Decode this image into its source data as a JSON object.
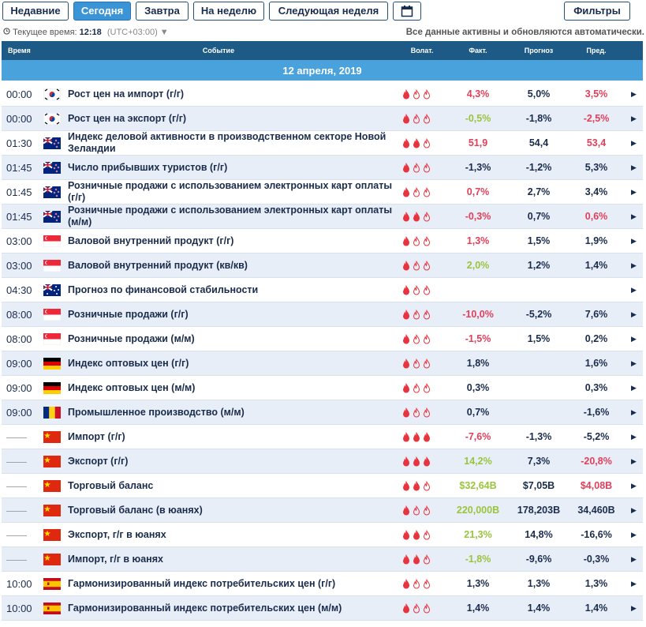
{
  "tabs": [
    "Недавние",
    "Сегодня",
    "Завтра",
    "На неделю",
    "Следующая неделя"
  ],
  "filters": "Фильтры",
  "status": {
    "label": "Текущее время:",
    "time": "12:18",
    "zone": "(UTC+03:00)",
    "note": "Все данные активны и обновляются автоматически."
  },
  "table": {
    "headers": [
      "Время",
      "Событие",
      "Волат.",
      "Факт.",
      "Прогноз",
      "Пред."
    ],
    "date": "12 апреля, 2019",
    "rows": [
      {
        "time": "00:00",
        "flag": "KR",
        "event": "Рост цен на импорт (г/г)",
        "volatility": 1,
        "actual": "4,3%",
        "actual_tone": "red",
        "forecast": "5,0%",
        "previous": "3,5%",
        "previous_tone": "red"
      },
      {
        "time": "00:00",
        "flag": "KR",
        "event": "Рост цен на экспорт (г/г)",
        "volatility": 1,
        "actual": "-0,5%",
        "actual_tone": "green",
        "forecast": "-1,8%",
        "previous": "-2,5%",
        "previous_tone": "red"
      },
      {
        "time": "01:30",
        "flag": "NZ",
        "event": "Индекс деловой активности в производственном секторе Новой Зеландии",
        "volatility": 2,
        "actual": "51,9",
        "actual_tone": "red",
        "forecast": "54,4",
        "previous": "53,4",
        "previous_tone": "red"
      },
      {
        "time": "01:45",
        "flag": "NZ",
        "event": "Число прибывших туристов (г/г)",
        "volatility": 1,
        "actual": "-1,3%",
        "forecast": "-1,2%",
        "previous": "5,3%"
      },
      {
        "time": "01:45",
        "flag": "NZ",
        "event": "Розничные продажи с использованием электронных карт оплаты (г/г)",
        "volatility": 1,
        "actual": "0,7%",
        "actual_tone": "red",
        "forecast": "2,7%",
        "previous": "3,4%"
      },
      {
        "time": "01:45",
        "flag": "NZ",
        "event": "Розничные продажи с использованием электронных карт оплаты (м/м)",
        "volatility": 2,
        "actual": "-0,3%",
        "actual_tone": "red",
        "forecast": "0,7%",
        "previous": "0,6%",
        "previous_tone": "red"
      },
      {
        "time": "03:00",
        "flag": "SG",
        "event": "Валовой внутренний продукт (г/г)",
        "volatility": 1,
        "actual": "1,3%",
        "actual_tone": "red",
        "forecast": "1,5%",
        "previous": "1,9%"
      },
      {
        "time": "03:00",
        "flag": "SG",
        "event": "Валовой внутренний продукт (кв/кв)",
        "volatility": 1,
        "actual": "2,0%",
        "actual_tone": "green",
        "forecast": "1,2%",
        "previous": "1,4%"
      },
      {
        "time": "04:30",
        "flag": "AU",
        "event": "Прогноз по финансовой стабильности",
        "volatility": 1,
        "actual": null,
        "forecast": null,
        "previous": null
      },
      {
        "time": "08:00",
        "flag": "SG",
        "event": "Розничные продажи (г/г)",
        "volatility": 1,
        "actual": "-10,0%",
        "actual_tone": "red",
        "forecast": "-5,2%",
        "previous": "7,6%"
      },
      {
        "time": "08:00",
        "flag": "SG",
        "event": "Розничные продажи (м/м)",
        "volatility": 1,
        "actual": "-1,5%",
        "actual_tone": "red",
        "forecast": "1,5%",
        "previous": "0,2%"
      },
      {
        "time": "09:00",
        "flag": "DE",
        "event": "Индекс оптовых цен (г/г)",
        "volatility": 1,
        "actual": "1,8%",
        "forecast": null,
        "previous": "1,6%"
      },
      {
        "time": "09:00",
        "flag": "DE",
        "event": "Индекс оптовых цен (м/м)",
        "volatility": 1,
        "actual": "0,3%",
        "forecast": null,
        "previous": "0,3%"
      },
      {
        "time": "09:00",
        "flag": "RO",
        "event": "Промышленное производство (м/м)",
        "volatility": 1,
        "actual": "0,7%",
        "forecast": null,
        "previous": "-1,6%"
      },
      {
        "time": "——",
        "flag": "CN",
        "event": "Импорт (г/г)",
        "volatility": 3,
        "actual": "-7,6%",
        "actual_tone": "red",
        "forecast": "-1,3%",
        "previous": "-5,2%"
      },
      {
        "time": "——",
        "flag": "CN",
        "event": "Экспорт (г/г)",
        "volatility": 3,
        "actual": "14,2%",
        "actual_tone": "green",
        "forecast": "7,3%",
        "previous": "-20,8%",
        "previous_tone": "red"
      },
      {
        "time": "——",
        "flag": "CN",
        "event": "Торговый баланс",
        "volatility": 2,
        "actual": "$32,64B",
        "actual_tone": "green",
        "forecast": "$7,05B",
        "previous": "$4,08B",
        "previous_tone": "red"
      },
      {
        "time": "——",
        "flag": "CN",
        "event": "Торговый баланс (в юанях)",
        "volatility": 1,
        "actual": "220,000B",
        "actual_tone": "green",
        "forecast": "178,203B",
        "previous": "34,460B"
      },
      {
        "time": "——",
        "flag": "CN",
        "event": "Экспорт, г/г в юанях",
        "volatility": 2,
        "actual": "21,3%",
        "actual_tone": "green",
        "forecast": "14,8%",
        "previous": "-16,6%"
      },
      {
        "time": "——",
        "flag": "CN",
        "event": "Импорт, г/г в юанях",
        "volatility": 2,
        "actual": "-1,8%",
        "actual_tone": "green",
        "forecast": "-9,6%",
        "previous": "-0,3%"
      },
      {
        "time": "10:00",
        "flag": "ES",
        "event": "Гармонизированный индекс потребительских цен (г/г)",
        "volatility": 1,
        "actual": "1,3%",
        "forecast": "1,3%",
        "previous": "1,3%"
      },
      {
        "time": "10:00",
        "flag": "ES",
        "event": "Гармонизированный индекс потребительских цен (м/м)",
        "volatility": 1,
        "actual": "1,4%",
        "forecast": "1,4%",
        "previous": "1,4%"
      }
    ]
  }
}
